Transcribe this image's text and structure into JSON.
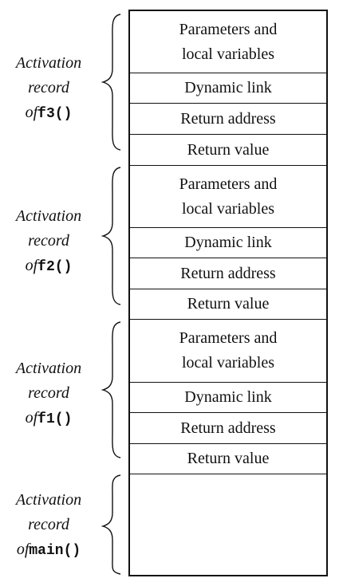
{
  "records": [
    {
      "label_line1": "Activation",
      "label_line2": "record",
      "label_of": "of",
      "function_name": "f3()",
      "fields": {
        "params_line1": "Parameters and",
        "params_line2": "local variables",
        "dynamic_link": "Dynamic link",
        "return_address": "Return address",
        "return_value": "Return value"
      }
    },
    {
      "label_line1": "Activation",
      "label_line2": "record",
      "label_of": "of",
      "function_name": "f2()",
      "fields": {
        "params_line1": "Parameters and",
        "params_line2": "local variables",
        "dynamic_link": "Dynamic link",
        "return_address": "Return address",
        "return_value": "Return value"
      }
    },
    {
      "label_line1": "Activation",
      "label_line2": "record",
      "label_of": "of",
      "function_name": "f1()",
      "fields": {
        "params_line1": "Parameters and",
        "params_line2": "local variables",
        "dynamic_link": "Dynamic link",
        "return_address": "Return address",
        "return_value": "Return value"
      }
    },
    {
      "label_line1": "Activation",
      "label_line2": "record",
      "label_of": "of",
      "function_name": "main()"
    }
  ]
}
